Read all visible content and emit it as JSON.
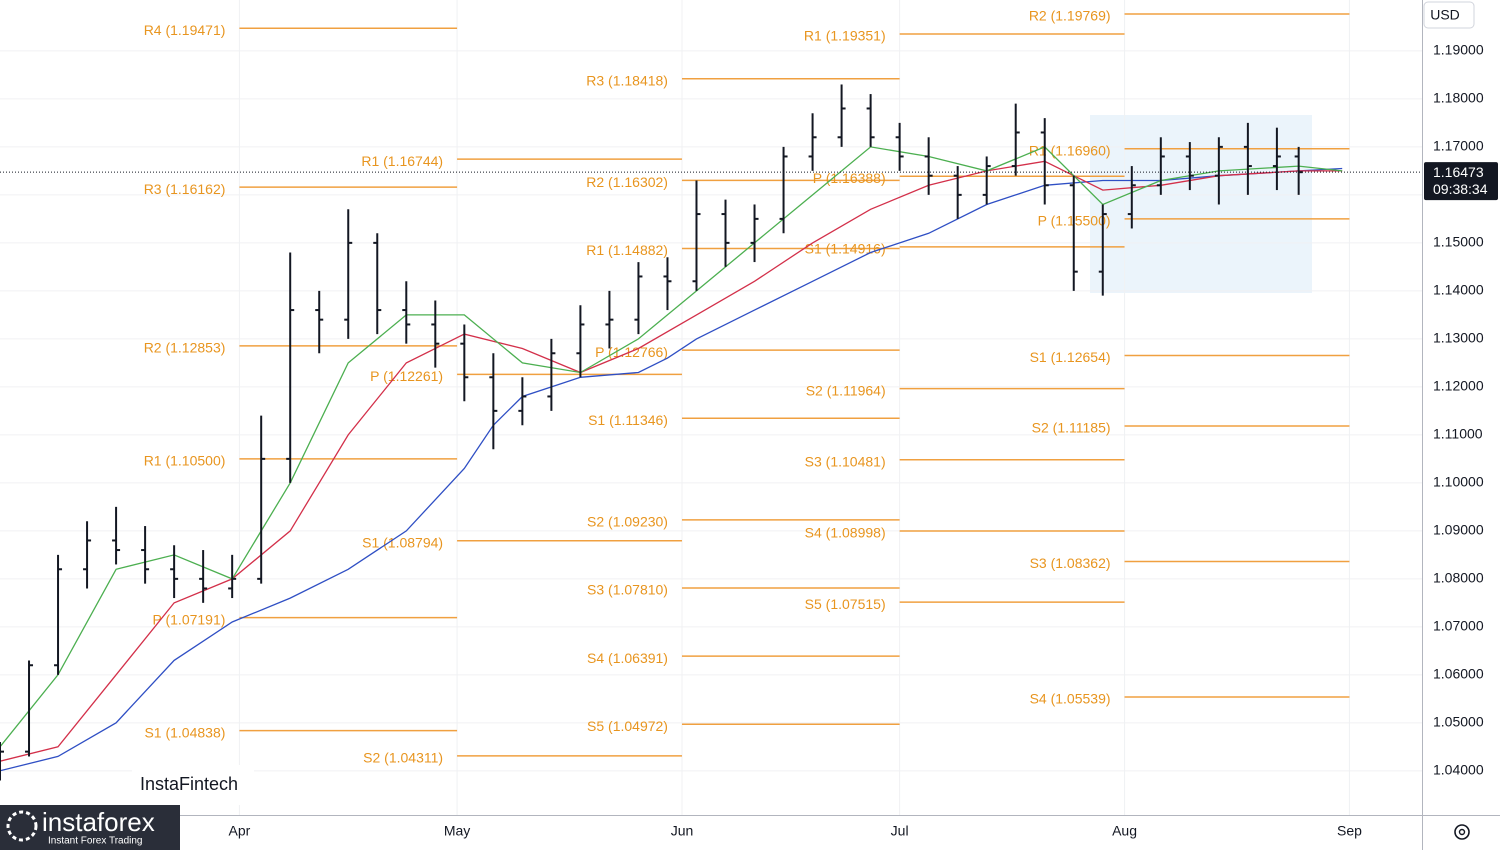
{
  "ui": {
    "currency": "USD",
    "watermark": "InstaFintech",
    "logo": "instaforex",
    "logo_tagline": "Instant Forex Trading"
  },
  "chart_data": {
    "type": "ohlc",
    "color": "#131722",
    "x": [
      58,
      62,
      66,
      70,
      74,
      78,
      82,
      86,
      90,
      94,
      98,
      102,
      106,
      110,
      114,
      118,
      122,
      126,
      130,
      134,
      138,
      142,
      146,
      150,
      154,
      158,
      162,
      166,
      170,
      174,
      178,
      182,
      186,
      190,
      194,
      198,
      202,
      206,
      210,
      214,
      218,
      222,
      226,
      230,
      234,
      237
    ],
    "open": [
      1.04,
      1.044,
      1.062,
      1.082,
      1.088,
      1.086,
      1.082,
      1.08,
      1.078,
      1.08,
      1.105,
      1.136,
      1.134,
      1.15,
      1.136,
      1.133,
      1.129,
      1.122,
      1.115,
      1.118,
      1.127,
      1.133,
      1.134,
      1.143,
      1.142,
      1.156,
      1.15,
      1.155,
      1.168,
      1.172,
      1.178,
      1.172,
      1.168,
      1.164,
      1.16,
      1.166,
      1.173,
      1.162,
      1.144,
      1.156,
      1.162,
      1.168,
      1.164,
      1.17,
      1.166,
      1.168
    ],
    "high": [
      1.046,
      1.063,
      1.085,
      1.092,
      1.095,
      1.091,
      1.087,
      1.086,
      1.085,
      1.114,
      1.148,
      1.14,
      1.157,
      1.152,
      1.142,
      1.138,
      1.133,
      1.127,
      1.122,
      1.13,
      1.137,
      1.14,
      1.146,
      1.147,
      1.163,
      1.159,
      1.158,
      1.17,
      1.177,
      1.183,
      1.181,
      1.175,
      1.172,
      1.166,
      1.168,
      1.179,
      1.176,
      1.164,
      1.158,
      1.166,
      1.172,
      1.171,
      1.172,
      1.175,
      1.174,
      1.17
    ],
    "low": [
      1.038,
      1.043,
      1.06,
      1.078,
      1.083,
      1.079,
      1.076,
      1.075,
      1.076,
      1.079,
      1.1,
      1.127,
      1.13,
      1.131,
      1.129,
      1.124,
      1.117,
      1.107,
      1.112,
      1.115,
      1.122,
      1.128,
      1.131,
      1.136,
      1.14,
      1.145,
      1.146,
      1.152,
      1.165,
      1.17,
      1.17,
      1.165,
      1.16,
      1.155,
      1.158,
      1.164,
      1.158,
      1.14,
      1.139,
      1.153,
      1.16,
      1.161,
      1.158,
      1.16,
      1.161,
      1.16
    ],
    "close": [
      1.044,
      1.062,
      1.082,
      1.088,
      1.086,
      1.082,
      1.08,
      1.078,
      1.08,
      1.105,
      1.136,
      1.134,
      1.15,
      1.136,
      1.133,
      1.129,
      1.122,
      1.115,
      1.118,
      1.127,
      1.133,
      1.134,
      1.143,
      1.142,
      1.156,
      1.15,
      1.155,
      1.168,
      1.172,
      1.178,
      1.172,
      1.168,
      1.164,
      1.16,
      1.166,
      1.173,
      1.162,
      1.144,
      1.156,
      1.162,
      1.168,
      1.164,
      1.17,
      1.166,
      1.168,
      1.16473
    ],
    "xlim": [
      58,
      254
    ],
    "xticks": [
      {
        "value": 91,
        "label": "Apr"
      },
      {
        "value": 121,
        "label": "May"
      },
      {
        "value": 152,
        "label": "Jun"
      },
      {
        "value": 182,
        "label": "Jul"
      },
      {
        "value": 213,
        "label": "Aug"
      },
      {
        "value": 244,
        "label": "Sep"
      }
    ],
    "ylim": [
      1.0308,
      1.2006
    ],
    "yticks": [
      {
        "value": 1.04,
        "label": "1.04000"
      },
      {
        "value": 1.05,
        "label": "1.05000"
      },
      {
        "value": 1.06,
        "label": "1.06000"
      },
      {
        "value": 1.07,
        "label": "1.07000"
      },
      {
        "value": 1.08,
        "label": "1.08000"
      },
      {
        "value": 1.09,
        "label": "1.09000"
      },
      {
        "value": 1.1,
        "label": "1.10000"
      },
      {
        "value": 1.11,
        "label": "1.11000"
      },
      {
        "value": 1.12,
        "label": "1.12000"
      },
      {
        "value": 1.13,
        "label": "1.13000"
      },
      {
        "value": 1.14,
        "label": "1.14000"
      },
      {
        "value": 1.15,
        "label": "1.15000"
      },
      {
        "value": 1.16,
        "label": "1.16000"
      },
      {
        "value": 1.17,
        "label": "1.17000"
      },
      {
        "value": 1.18,
        "label": "1.18000"
      },
      {
        "value": 1.19,
        "label": "1.19000"
      }
    ],
    "grid": true,
    "last_price": 1.16473,
    "countdown": "09:38:34",
    "moving_averages": [
      {
        "color": "#2f4fc4",
        "x": [
          58,
          66,
          74,
          82,
          90,
          98,
          106,
          114,
          122,
          126,
          130,
          138,
          146,
          150,
          154,
          162,
          170,
          178,
          186,
          194,
          202,
          210,
          218,
          226,
          237,
          243
        ],
        "values": [
          1.04,
          1.043,
          1.05,
          1.063,
          1.071,
          1.076,
          1.082,
          1.09,
          1.103,
          1.112,
          1.118,
          1.122,
          1.123,
          1.126,
          1.13,
          1.136,
          1.142,
          1.148,
          1.152,
          1.158,
          1.162,
          1.163,
          1.163,
          1.164,
          1.165,
          1.1655
        ]
      },
      {
        "color": "#d3304a",
        "x": [
          58,
          66,
          74,
          82,
          90,
          98,
          106,
          114,
          122,
          130,
          138,
          146,
          154,
          162,
          170,
          178,
          186,
          194,
          202,
          210,
          218,
          226,
          237,
          243
        ],
        "values": [
          1.042,
          1.045,
          1.06,
          1.075,
          1.08,
          1.09,
          1.11,
          1.125,
          1.131,
          1.128,
          1.123,
          1.128,
          1.135,
          1.142,
          1.15,
          1.157,
          1.162,
          1.165,
          1.167,
          1.161,
          1.162,
          1.164,
          1.165,
          1.165
        ]
      },
      {
        "color": "#4caf50",
        "x": [
          58,
          66,
          74,
          82,
          90,
          98,
          106,
          114,
          122,
          130,
          138,
          146,
          154,
          162,
          170,
          178,
          186,
          194,
          202,
          210,
          218,
          226,
          237,
          243
        ],
        "values": [
          1.045,
          1.06,
          1.082,
          1.085,
          1.08,
          1.1,
          1.125,
          1.135,
          1.135,
          1.125,
          1.123,
          1.13,
          1.14,
          1.15,
          1.16,
          1.17,
          1.168,
          1.165,
          1.17,
          1.158,
          1.163,
          1.165,
          1.166,
          1.165
        ]
      }
    ],
    "pivot_color": "#f0a040",
    "pivots": [
      {
        "label": "R4 (1.19471)",
        "value": 1.19471,
        "from": 91,
        "to": 121
      },
      {
        "label": "R3 (1.16162)",
        "value": 1.16162,
        "from": 91,
        "to": 121
      },
      {
        "label": "R2 (1.12853)",
        "value": 1.12853,
        "from": 91,
        "to": 121
      },
      {
        "label": "R1 (1.10500)",
        "value": 1.105,
        "from": 91,
        "to": 121
      },
      {
        "label": "P (1.07191)",
        "value": 1.07191,
        "from": 91,
        "to": 121
      },
      {
        "label": "S1 (1.04838)",
        "value": 1.04838,
        "from": 91,
        "to": 121
      },
      {
        "label": "R1 (1.16744)",
        "value": 1.16744,
        "from": 121,
        "to": 152
      },
      {
        "label": "P (1.12261)",
        "value": 1.12261,
        "from": 121,
        "to": 152
      },
      {
        "label": "S1 (1.08794)",
        "value": 1.08794,
        "from": 121,
        "to": 152
      },
      {
        "label": "S2 (1.04311)",
        "value": 1.04311,
        "from": 121,
        "to": 152
      },
      {
        "label": "R3 (1.18418)",
        "value": 1.18418,
        "from": 152,
        "to": 182
      },
      {
        "label": "R2 (1.16302)",
        "value": 1.16302,
        "from": 152,
        "to": 182
      },
      {
        "label": "R1 (1.14882)",
        "value": 1.14882,
        "from": 152,
        "to": 182
      },
      {
        "label": "P (1.12766)",
        "value": 1.12766,
        "from": 152,
        "to": 182
      },
      {
        "label": "S1 (1.11346)",
        "value": 1.11346,
        "from": 152,
        "to": 182
      },
      {
        "label": "S2 (1.09230)",
        "value": 1.0923,
        "from": 152,
        "to": 182
      },
      {
        "label": "S3 (1.07810)",
        "value": 1.0781,
        "from": 152,
        "to": 182
      },
      {
        "label": "S4 (1.06391)",
        "value": 1.06391,
        "from": 152,
        "to": 182
      },
      {
        "label": "S5 (1.04972)",
        "value": 1.04972,
        "from": 152,
        "to": 182
      },
      {
        "label": "R1 (1.19351)",
        "value": 1.19351,
        "from": 182,
        "to": 213
      },
      {
        "label": "P (1.16388)",
        "value": 1.16388,
        "from": 182,
        "to": 213
      },
      {
        "label": "S1 (1.14916)",
        "value": 1.14916,
        "from": 182,
        "to": 213
      },
      {
        "label": "S2 (1.11964)",
        "value": 1.11964,
        "from": 182,
        "to": 213
      },
      {
        "label": "S3 (1.10481)",
        "value": 1.10481,
        "from": 182,
        "to": 213
      },
      {
        "label": "S4 (1.08998)",
        "value": 1.08998,
        "from": 182,
        "to": 213
      },
      {
        "label": "S5 (1.07515)",
        "value": 1.07515,
        "from": 182,
        "to": 213
      },
      {
        "label": "R2 (1.19769)",
        "value": 1.19769,
        "from": 213,
        "to": 244
      },
      {
        "label": "R1 (1.16960)",
        "value": 1.1696,
        "from": 213,
        "to": 244
      },
      {
        "label": "P (1.15500)",
        "value": 1.155,
        "from": 213,
        "to": 244
      },
      {
        "label": "S1 (1.12654)",
        "value": 1.12654,
        "from": 213,
        "to": 244
      },
      {
        "label": "S2 (1.11185)",
        "value": 1.11185,
        "from": 213,
        "to": 244
      },
      {
        "label": "S3 (1.08362)",
        "value": 1.08362,
        "from": 213,
        "to": 244
      },
      {
        "label": "S4 (1.05539)",
        "value": 1.05539,
        "from": 213,
        "to": 244
      }
    ]
  }
}
